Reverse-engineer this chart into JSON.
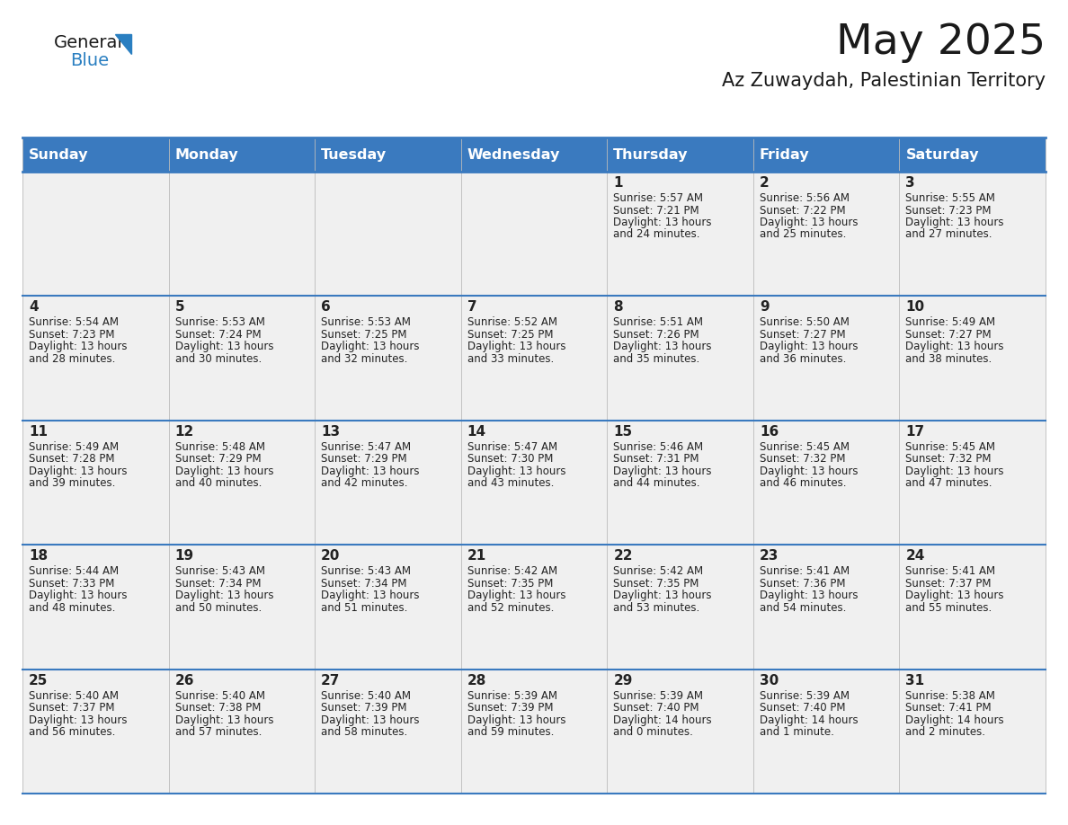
{
  "title": "May 2025",
  "subtitle": "Az Zuwaydah, Palestinian Territory",
  "header_bg_color": "#3a7abf",
  "header_text_color": "#ffffff",
  "cell_bg_color": "#f0f0f0",
  "border_color": "#3a7abf",
  "text_color": "#222222",
  "day_names": [
    "Sunday",
    "Monday",
    "Tuesday",
    "Wednesday",
    "Thursday",
    "Friday",
    "Saturday"
  ],
  "days": [
    {
      "day": 1,
      "col": 4,
      "row": 0,
      "sunrise": "5:57 AM",
      "sunset": "7:21 PM",
      "daylight": "13 hours and 24 minutes."
    },
    {
      "day": 2,
      "col": 5,
      "row": 0,
      "sunrise": "5:56 AM",
      "sunset": "7:22 PM",
      "daylight": "13 hours and 25 minutes."
    },
    {
      "day": 3,
      "col": 6,
      "row": 0,
      "sunrise": "5:55 AM",
      "sunset": "7:23 PM",
      "daylight": "13 hours and 27 minutes."
    },
    {
      "day": 4,
      "col": 0,
      "row": 1,
      "sunrise": "5:54 AM",
      "sunset": "7:23 PM",
      "daylight": "13 hours and 28 minutes."
    },
    {
      "day": 5,
      "col": 1,
      "row": 1,
      "sunrise": "5:53 AM",
      "sunset": "7:24 PM",
      "daylight": "13 hours and 30 minutes."
    },
    {
      "day": 6,
      "col": 2,
      "row": 1,
      "sunrise": "5:53 AM",
      "sunset": "7:25 PM",
      "daylight": "13 hours and 32 minutes."
    },
    {
      "day": 7,
      "col": 3,
      "row": 1,
      "sunrise": "5:52 AM",
      "sunset": "7:25 PM",
      "daylight": "13 hours and 33 minutes."
    },
    {
      "day": 8,
      "col": 4,
      "row": 1,
      "sunrise": "5:51 AM",
      "sunset": "7:26 PM",
      "daylight": "13 hours and 35 minutes."
    },
    {
      "day": 9,
      "col": 5,
      "row": 1,
      "sunrise": "5:50 AM",
      "sunset": "7:27 PM",
      "daylight": "13 hours and 36 minutes."
    },
    {
      "day": 10,
      "col": 6,
      "row": 1,
      "sunrise": "5:49 AM",
      "sunset": "7:27 PM",
      "daylight": "13 hours and 38 minutes."
    },
    {
      "day": 11,
      "col": 0,
      "row": 2,
      "sunrise": "5:49 AM",
      "sunset": "7:28 PM",
      "daylight": "13 hours and 39 minutes."
    },
    {
      "day": 12,
      "col": 1,
      "row": 2,
      "sunrise": "5:48 AM",
      "sunset": "7:29 PM",
      "daylight": "13 hours and 40 minutes."
    },
    {
      "day": 13,
      "col": 2,
      "row": 2,
      "sunrise": "5:47 AM",
      "sunset": "7:29 PM",
      "daylight": "13 hours and 42 minutes."
    },
    {
      "day": 14,
      "col": 3,
      "row": 2,
      "sunrise": "5:47 AM",
      "sunset": "7:30 PM",
      "daylight": "13 hours and 43 minutes."
    },
    {
      "day": 15,
      "col": 4,
      "row": 2,
      "sunrise": "5:46 AM",
      "sunset": "7:31 PM",
      "daylight": "13 hours and 44 minutes."
    },
    {
      "day": 16,
      "col": 5,
      "row": 2,
      "sunrise": "5:45 AM",
      "sunset": "7:32 PM",
      "daylight": "13 hours and 46 minutes."
    },
    {
      "day": 17,
      "col": 6,
      "row": 2,
      "sunrise": "5:45 AM",
      "sunset": "7:32 PM",
      "daylight": "13 hours and 47 minutes."
    },
    {
      "day": 18,
      "col": 0,
      "row": 3,
      "sunrise": "5:44 AM",
      "sunset": "7:33 PM",
      "daylight": "13 hours and 48 minutes."
    },
    {
      "day": 19,
      "col": 1,
      "row": 3,
      "sunrise": "5:43 AM",
      "sunset": "7:34 PM",
      "daylight": "13 hours and 50 minutes."
    },
    {
      "day": 20,
      "col": 2,
      "row": 3,
      "sunrise": "5:43 AM",
      "sunset": "7:34 PM",
      "daylight": "13 hours and 51 minutes."
    },
    {
      "day": 21,
      "col": 3,
      "row": 3,
      "sunrise": "5:42 AM",
      "sunset": "7:35 PM",
      "daylight": "13 hours and 52 minutes."
    },
    {
      "day": 22,
      "col": 4,
      "row": 3,
      "sunrise": "5:42 AM",
      "sunset": "7:35 PM",
      "daylight": "13 hours and 53 minutes."
    },
    {
      "day": 23,
      "col": 5,
      "row": 3,
      "sunrise": "5:41 AM",
      "sunset": "7:36 PM",
      "daylight": "13 hours and 54 minutes."
    },
    {
      "day": 24,
      "col": 6,
      "row": 3,
      "sunrise": "5:41 AM",
      "sunset": "7:37 PM",
      "daylight": "13 hours and 55 minutes."
    },
    {
      "day": 25,
      "col": 0,
      "row": 4,
      "sunrise": "5:40 AM",
      "sunset": "7:37 PM",
      "daylight": "13 hours and 56 minutes."
    },
    {
      "day": 26,
      "col": 1,
      "row": 4,
      "sunrise": "5:40 AM",
      "sunset": "7:38 PM",
      "daylight": "13 hours and 57 minutes."
    },
    {
      "day": 27,
      "col": 2,
      "row": 4,
      "sunrise": "5:40 AM",
      "sunset": "7:39 PM",
      "daylight": "13 hours and 58 minutes."
    },
    {
      "day": 28,
      "col": 3,
      "row": 4,
      "sunrise": "5:39 AM",
      "sunset": "7:39 PM",
      "daylight": "13 hours and 59 minutes."
    },
    {
      "day": 29,
      "col": 4,
      "row": 4,
      "sunrise": "5:39 AM",
      "sunset": "7:40 PM",
      "daylight": "14 hours and 0 minutes."
    },
    {
      "day": 30,
      "col": 5,
      "row": 4,
      "sunrise": "5:39 AM",
      "sunset": "7:40 PM",
      "daylight": "14 hours and 1 minute."
    },
    {
      "day": 31,
      "col": 6,
      "row": 4,
      "sunrise": "5:38 AM",
      "sunset": "7:41 PM",
      "daylight": "14 hours and 2 minutes."
    }
  ]
}
